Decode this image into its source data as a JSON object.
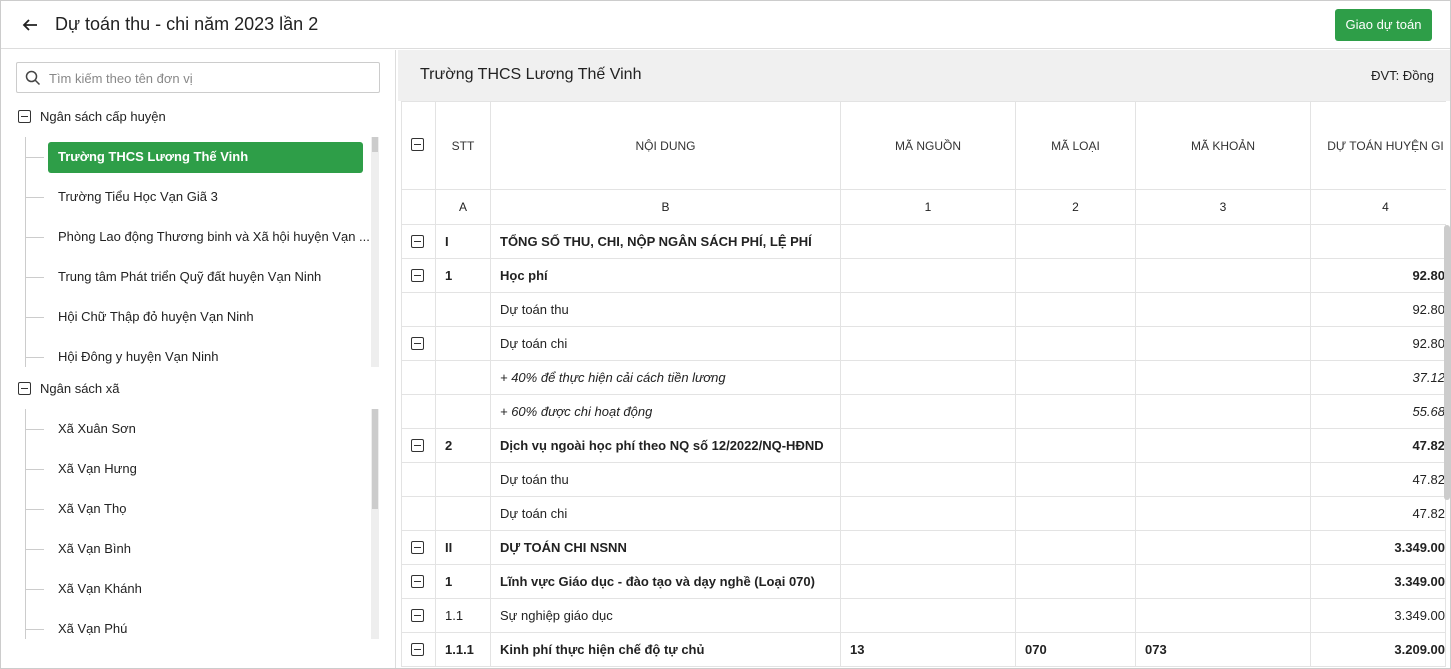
{
  "header": {
    "title": "Dự toán thu - chi năm 2023 lần 2",
    "button": "Giao dự toán"
  },
  "sidebar": {
    "search_placeholder": "Tìm kiếm theo tên đơn vị",
    "selected": [
      0,
      0
    ],
    "groups": [
      {
        "label": "Ngân sách cấp huyện",
        "items": [
          "Trường THCS Lương Thế Vinh",
          "Trường Tiểu Học Vạn Giã 3",
          "Phòng Lao động Thương binh và Xã hội huyện Vạn ...",
          "Trung tâm Phát triển Quỹ đất huyện Vạn Ninh",
          "Hội Chữ Thập đỏ huyện Vạn Ninh",
          "Hội Đông y huyện Vạn Ninh"
        ]
      },
      {
        "label": "Ngân sách xã",
        "items": [
          "Xã Xuân Sơn",
          "Xã Vạn Hưng",
          "Xã Vạn Thọ",
          "Xã Vạn Bình",
          "Xã Vạn Khánh",
          "Xã Vạn Phú"
        ]
      }
    ]
  },
  "panel": {
    "title": "Trường THCS Lương Thế Vinh",
    "unit": "ĐVT: Đồng"
  },
  "table": {
    "columns": [
      "STT",
      "NỘI DUNG",
      "MÃ NGUỒN",
      "MÃ LOẠI",
      "MÃ KHOẢN",
      "DỰ TOÁN HUYỆN GI"
    ],
    "index_row": [
      "A",
      "B",
      "1",
      "2",
      "3",
      "4"
    ],
    "rows": [
      {
        "stt": "I",
        "content": "TỔNG SỐ THU, CHI, NỘP NGÂN SÁCH PHÍ, LỆ PHÍ",
        "toggle": true,
        "bold": true
      },
      {
        "stt": "1",
        "content": "Học phí",
        "value": "92.80",
        "toggle": true,
        "bold": true
      },
      {
        "content": "Dự toán thu",
        "value": "92.80"
      },
      {
        "content": "Dự toán chi",
        "value": "92.80",
        "toggle": true
      },
      {
        "content": "+ 40% để thực hiện cải cách tiền lương",
        "value": "37.12",
        "italic": true
      },
      {
        "content": "+ 60% được chi hoạt động",
        "value": "55.68",
        "italic": true
      },
      {
        "stt": "2",
        "content": "Dịch vụ ngoài học phí theo NQ số 12/2022/NQ-HĐND",
        "value": "47.82",
        "toggle": true,
        "bold": true
      },
      {
        "content": "Dự toán thu",
        "value": "47.82"
      },
      {
        "content": "Dự toán chi",
        "value": "47.82"
      },
      {
        "stt": "II",
        "content": "DỰ TOÁN CHI NSNN",
        "value": "3.349.00",
        "toggle": true,
        "bold": true
      },
      {
        "stt": "1",
        "content": "Lĩnh vực Giáo dục - đào tạo và dạy nghề (Loại 070)",
        "value": "3.349.00",
        "toggle": true,
        "bold": true
      },
      {
        "stt": "1.1",
        "content": "Sự nghiệp giáo dục",
        "value": "3.349.00",
        "toggle": true
      },
      {
        "stt": "1.1.1",
        "content": "Kinh phí thực hiện chế độ tự chủ",
        "nguon": "13",
        "loai": "070",
        "khoan": "073",
        "value": "3.209.00",
        "toggle": true,
        "bold": true
      }
    ]
  }
}
